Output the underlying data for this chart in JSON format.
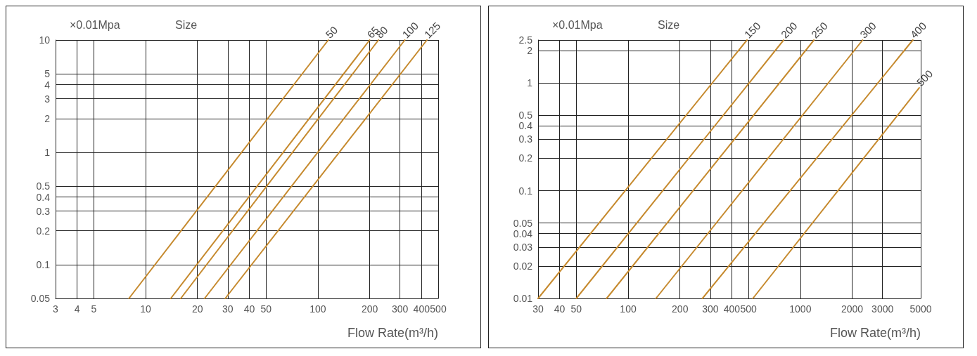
{
  "chart_data": [
    {
      "type": "line",
      "xlabel": "Flow Rate(m³/h)",
      "ylabel": "×0.01Mpa",
      "legend_title": "Size",
      "log": "xy",
      "grid": true,
      "legend": false,
      "marker": "none",
      "line_style": "solid",
      "xlim": [
        3,
        500
      ],
      "ylim": [
        0.05,
        10
      ],
      "xticks": [
        3,
        4,
        5,
        10,
        20,
        30,
        40,
        50,
        100,
        200,
        300,
        400,
        500
      ],
      "yticks": [
        0.05,
        0.1,
        0.2,
        0.3,
        0.4,
        0.5,
        1,
        2,
        3,
        4,
        5,
        10
      ],
      "series": [
        {
          "name": "50",
          "color": "#c68a2e",
          "x": [
            8,
            115
          ],
          "values": [
            0.05,
            10
          ]
        },
        {
          "name": "65",
          "color": "#c68a2e",
          "x": [
            14,
            200
          ],
          "values": [
            0.05,
            10
          ]
        },
        {
          "name": "80",
          "color": "#c68a2e",
          "x": [
            16,
            225
          ],
          "values": [
            0.05,
            10
          ]
        },
        {
          "name": "100",
          "color": "#c68a2e",
          "x": [
            22,
            320
          ],
          "values": [
            0.05,
            10
          ]
        },
        {
          "name": "125",
          "color": "#c68a2e",
          "x": [
            29,
            430
          ],
          "values": [
            0.05,
            10
          ]
        }
      ]
    },
    {
      "type": "line",
      "xlabel": "Flow Rate(m³/h)",
      "ylabel": "×0.01Mpa",
      "legend_title": "Size",
      "log": "xy",
      "grid": true,
      "legend": false,
      "marker": "none",
      "line_style": "solid",
      "xlim": [
        30,
        5000
      ],
      "ylim": [
        0.01,
        2.5
      ],
      "xticks": [
        30,
        40,
        50,
        100,
        200,
        300,
        400,
        500,
        1000,
        2000,
        3000,
        5000
      ],
      "yticks": [
        0.01,
        0.02,
        0.03,
        0.04,
        0.05,
        0.1,
        0.2,
        0.3,
        0.4,
        0.5,
        1,
        2,
        2.5
      ],
      "series": [
        {
          "name": "150",
          "color": "#c68a2e",
          "x": [
            30,
            490
          ],
          "values": [
            0.01,
            2.5
          ]
        },
        {
          "name": "200",
          "color": "#c68a2e",
          "x": [
            50,
            800
          ],
          "values": [
            0.01,
            2.5
          ]
        },
        {
          "name": "250",
          "color": "#c68a2e",
          "x": [
            75,
            1200
          ],
          "values": [
            0.01,
            2.5
          ]
        },
        {
          "name": "300",
          "color": "#c68a2e",
          "x": [
            145,
            2300
          ],
          "values": [
            0.01,
            2.5
          ]
        },
        {
          "name": "400",
          "color": "#c68a2e",
          "x": [
            270,
            4500
          ],
          "values": [
            0.01,
            2.5
          ]
        },
        {
          "name": "500",
          "color": "#c68a2e",
          "x": [
            530,
            4900
          ],
          "values": [
            0.01,
            0.9
          ]
        }
      ]
    }
  ]
}
